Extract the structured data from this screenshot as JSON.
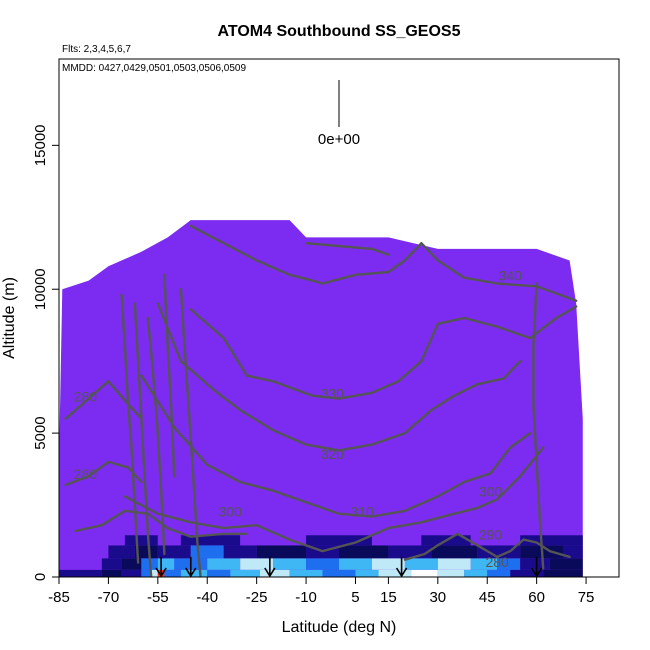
{
  "chart_data": {
    "type": "heatmap",
    "title": "ATOM4 Southbound SS_GEOS5",
    "flights_note": "Flts: 2,3,4,5,6,7",
    "dates_note": "MMDD: 0427,0429,0501,0503,0506,0509",
    "xlabel": "Latitude (deg N)",
    "ylabel": "Altitude (m)",
    "xlim": [
      -85,
      85
    ],
    "ylim": [
      0,
      18000
    ],
    "x_ticks": [
      -85,
      -70,
      -55,
      -40,
      -25,
      -10,
      5,
      15,
      30,
      45,
      60,
      75
    ],
    "y_ticks": [
      0,
      5000,
      10000,
      15000
    ],
    "scale_label": "0e+00",
    "background_color": "#7b2cf0",
    "field_colors": [
      "#7b2cf0",
      "#1a0a8c",
      "#0a0a5a",
      "#1e6ff0",
      "#3fb7f5",
      "#bfe9f7",
      "#ffffff",
      "#ff2a1a"
    ],
    "contour_color": "#555555",
    "contour_levels": [
      280,
      290,
      300,
      310,
      320,
      330,
      340
    ],
    "contour_labels": [
      {
        "level": 340,
        "lat": 52,
        "alt": 10300
      },
      {
        "level": 330,
        "lat": -2,
        "alt": 6200
      },
      {
        "level": 320,
        "lat": -2,
        "alt": 4100
      },
      {
        "level": 310,
        "lat": 7,
        "alt": 2100
      },
      {
        "level": 300,
        "lat": 46,
        "alt": 2800
      },
      {
        "level": 300,
        "lat": -33,
        "alt": 2100
      },
      {
        "level": 290,
        "lat": 46,
        "alt": 1300
      },
      {
        "level": 280,
        "lat": 48,
        "alt": 350
      },
      {
        "level": 280,
        "lat": -77,
        "alt": 6100
      },
      {
        "level": 280,
        "lat": -77,
        "alt": 3400
      }
    ],
    "sounding_latitudes": [
      -54,
      -45,
      -21,
      19,
      60
    ],
    "column_top_profile": [
      {
        "lat": -85,
        "alt": 4000
      },
      {
        "lat": -84,
        "alt": 10000
      },
      {
        "lat": -76,
        "alt": 10300
      },
      {
        "lat": -70,
        "alt": 10800
      },
      {
        "lat": -60,
        "alt": 11300
      },
      {
        "lat": -52,
        "alt": 11800
      },
      {
        "lat": -45,
        "alt": 12400
      },
      {
        "lat": -15,
        "alt": 12400
      },
      {
        "lat": -10,
        "alt": 11800
      },
      {
        "lat": 15,
        "alt": 11800
      },
      {
        "lat": 30,
        "alt": 11400
      },
      {
        "lat": 55,
        "alt": 11400
      },
      {
        "lat": 60,
        "alt": 11400
      },
      {
        "lat": 70,
        "alt": 11000
      },
      {
        "lat": 72,
        "alt": 9500
      },
      {
        "lat": 74,
        "alt": 5500
      },
      {
        "lat": 74,
        "alt": 0
      }
    ]
  }
}
